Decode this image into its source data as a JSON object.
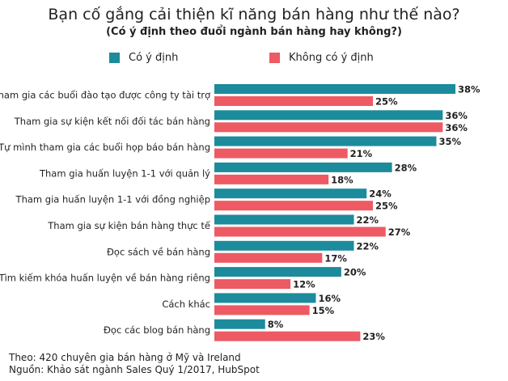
{
  "colors": {
    "series1": "#1c8b9c",
    "series2": "#ee5a63"
  },
  "chart_data": {
    "type": "bar",
    "orientation": "horizontal",
    "title": "Bạn cố gắng cải thiện kĩ năng bán hàng như thế nào?",
    "subtitle": "(Có ý định theo đuổi ngành bán hàng hay không?)",
    "categories": [
      "Tham gia các buổi đào tạo được công ty tài trợ",
      "Tham gia sự kiện kết nối đối tác bán hàng",
      "Tự mình tham gia các buổi họp báo bán hàng",
      "Tham gia huấn luyện 1-1 với quản lý",
      "Tham gia huấn luyện 1-1 với đồng nghiệp",
      "Tham gia sự kiện bán hàng thực tế",
      "Đọc sách về bán hàng",
      "Tìm kiếm khóa huấn luyện về bán hàng riêng",
      "Cách khác",
      "Đọc các blog bán hàng"
    ],
    "series": [
      {
        "name": "Có ý định",
        "values": [
          38,
          36,
          35,
          28,
          24,
          22,
          22,
          20,
          16,
          8
        ]
      },
      {
        "name": "Không có ý định",
        "values": [
          25,
          36,
          21,
          18,
          25,
          27,
          17,
          12,
          15,
          23
        ]
      }
    ],
    "value_suffix": "%",
    "xlim": [
      0,
      38
    ],
    "grid": false,
    "legend_position": "top-left"
  },
  "footer": {
    "note": "Theo: 420 chuyên gia bán hàng ở Mỹ và Ireland",
    "source": "Nguồn: Khảo sát ngành Sales Quý 1/2017, HubSpot"
  }
}
